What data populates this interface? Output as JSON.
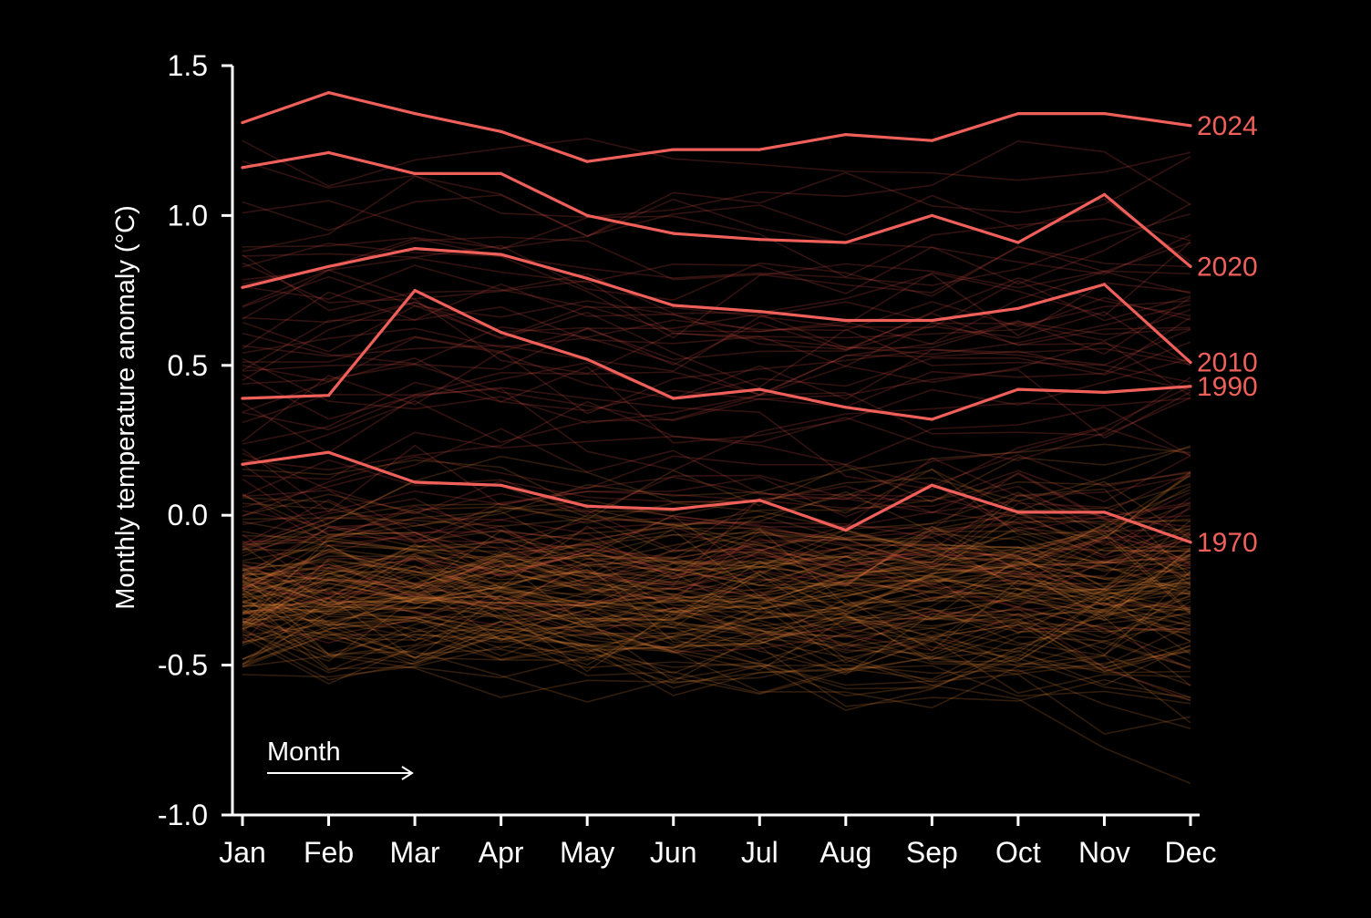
{
  "colors": {
    "background": "#000000",
    "axis": "#ffffff",
    "highlight_line": "#f0605a",
    "highlight_label": "#f0605a",
    "background_lines_warm": "#f08a3a",
    "background_lines_hot": "#e0504a"
  },
  "chart_data": {
    "type": "line",
    "xlabel": "Month",
    "ylabel": "Monthly temperature anomaly (°C)",
    "ylim": [
      -1.0,
      1.5
    ],
    "yticks": [
      "-1.0",
      "-0.5",
      "0.0",
      "0.5",
      "1.0",
      "1.5"
    ],
    "ytick_values": [
      -1.0,
      -0.5,
      0.0,
      0.5,
      1.0,
      1.5
    ],
    "categories": [
      "Jan",
      "Feb",
      "Mar",
      "Apr",
      "May",
      "Jun",
      "Jul",
      "Aug",
      "Sep",
      "Oct",
      "Nov",
      "Dec"
    ],
    "grid": false,
    "legend": "none",
    "highlighted_series": [
      {
        "name": "2024",
        "values": [
          1.31,
          1.41,
          1.34,
          1.28,
          1.18,
          1.22,
          1.22,
          1.27,
          1.25,
          1.34,
          1.34,
          1.3
        ]
      },
      {
        "name": "2020",
        "values": [
          1.16,
          1.21,
          1.14,
          1.14,
          1.0,
          0.94,
          0.92,
          0.91,
          1.0,
          0.91,
          1.07,
          0.83
        ]
      },
      {
        "name": "2010",
        "values": [
          0.76,
          0.83,
          0.89,
          0.87,
          0.79,
          0.7,
          0.68,
          0.65,
          0.65,
          0.69,
          0.77,
          0.51
        ]
      },
      {
        "name": "1990",
        "values": [
          0.39,
          0.4,
          0.75,
          0.61,
          0.52,
          0.39,
          0.42,
          0.36,
          0.32,
          0.42,
          0.41,
          0.43
        ]
      },
      {
        "name": "1970",
        "values": [
          0.17,
          0.21,
          0.11,
          0.1,
          0.03,
          0.02,
          0.05,
          -0.05,
          0.1,
          0.01,
          0.01,
          -0.09
        ]
      }
    ],
    "background_series_summary": {
      "count": 175,
      "baseline_range": [
        -0.45,
        1.05
      ]
    }
  }
}
